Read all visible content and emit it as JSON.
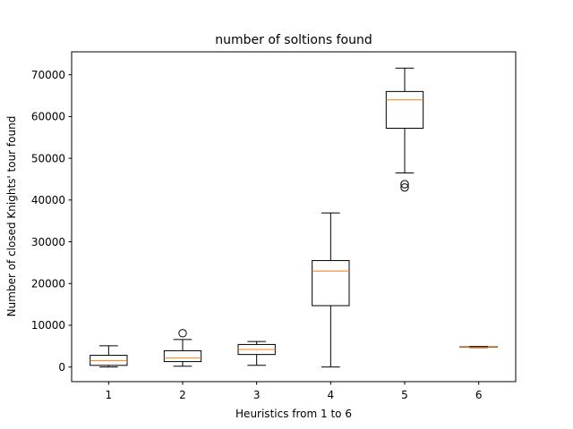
{
  "chart_data": {
    "type": "box",
    "title": "number of soltions found",
    "xlabel": "Heuristics from 1 to 6",
    "ylabel": "Number of closed Knights' tour found",
    "categories": [
      "1",
      "2",
      "3",
      "4",
      "5",
      "6"
    ],
    "ylim": [
      -3500,
      75500
    ],
    "yticks": [
      0,
      10000,
      20000,
      30000,
      40000,
      50000,
      60000,
      70000
    ],
    "grid": false,
    "boxes": [
      {
        "category": "1",
        "whisker_low": 0,
        "q1": 400,
        "median": 1500,
        "q3": 2800,
        "whisker_high": 5100,
        "outliers": []
      },
      {
        "category": "2",
        "whisker_low": 200,
        "q1": 1300,
        "median": 2200,
        "q3": 3900,
        "whisker_high": 6600,
        "outliers": [
          8100
        ]
      },
      {
        "category": "3",
        "whisker_low": 400,
        "q1": 3000,
        "median": 4200,
        "q3": 5400,
        "whisker_high": 6100,
        "outliers": []
      },
      {
        "category": "4",
        "whisker_low": 0,
        "q1": 14700,
        "median": 23000,
        "q3": 25500,
        "whisker_high": 36900,
        "outliers": []
      },
      {
        "category": "5",
        "whisker_low": 46500,
        "q1": 57200,
        "median": 64000,
        "q3": 66000,
        "whisker_high": 71600,
        "outliers": [
          43000,
          43800
        ]
      },
      {
        "category": "6",
        "whisker_low": 4650,
        "q1": 4750,
        "median": 4800,
        "q3": 4850,
        "whisker_high": 4950,
        "outliers": []
      }
    ],
    "colors": {
      "box": "#000000",
      "median": "#ff7f0e",
      "outlier": "#000000"
    }
  }
}
